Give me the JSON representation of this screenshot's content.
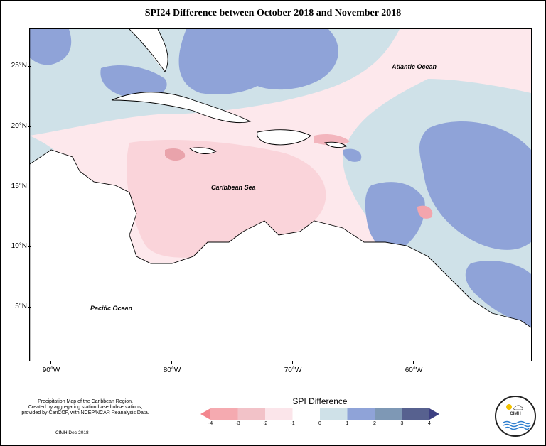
{
  "title": "SPI24 Difference between October 2018 and November 2018",
  "map": {
    "lat_ticks": [
      "25°N",
      "20°N",
      "15°N",
      "10°N",
      "5°N"
    ],
    "lon_ticks": [
      "90°W",
      "80°W",
      "70°W",
      "60°W"
    ],
    "labels": {
      "atlantic": "Atlantic Ocean",
      "caribbean": "Caribbean Sea",
      "pacific": "Pacific Ocean"
    }
  },
  "notes": {
    "line1": "Precipitation Map of the Caribbean Region.",
    "line2": "Created by aggregating station based observations,",
    "line3": "provided by CariCOF, with NCEP/NCAR Reanalysis Data.",
    "credit": "CIMH Dec-2018"
  },
  "legend": {
    "title": "SPI Difference",
    "ticks": [
      "-4",
      "-3",
      "-2",
      "-1",
      "0",
      "1",
      "2",
      "3",
      "4"
    ],
    "colors": [
      "#f3868e",
      "#f5aab0",
      "#f2c2c8",
      "#fbe5ea",
      "#ffffff",
      "#cfe1e8",
      "#8fa3d8",
      "#7e98b5",
      "#57618f",
      "#3c3f82"
    ]
  },
  "logo": {
    "text": "CIMH"
  }
}
